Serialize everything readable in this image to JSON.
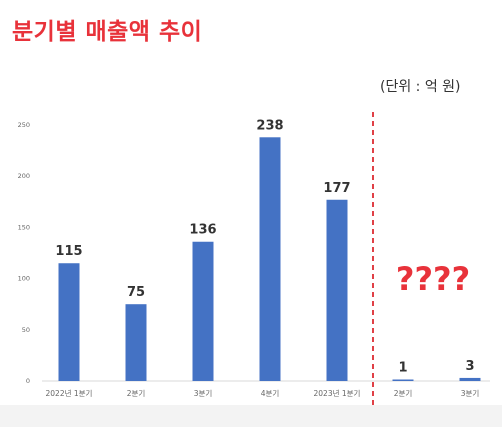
{
  "title": "분기별 매출액 추이",
  "unit_note": "(단위 : 억 원)",
  "annotation": "????",
  "colors": {
    "title": "#e8323a",
    "bar": "#4472c4",
    "divider": "#e04046",
    "annotation": "#e8323a",
    "axis_text": "#666666",
    "value_text": "#333333"
  },
  "chart_data": {
    "type": "bar",
    "categories": [
      "2022년 1분기",
      "2분기",
      "3분기",
      "4분기",
      "2023년 1분기",
      "2분기",
      "3분기"
    ],
    "values": [
      115,
      75,
      136,
      238,
      177,
      1,
      3
    ],
    "value_labels": [
      "115",
      "75",
      "136",
      "238",
      "177",
      "1",
      "3"
    ],
    "title": "분기별 매출액 추이",
    "xlabel": "",
    "ylabel": "",
    "ylim": [
      0,
      250
    ],
    "yticks": [
      0,
      50,
      100,
      150,
      200,
      250
    ],
    "grid": false,
    "legend": "none"
  }
}
